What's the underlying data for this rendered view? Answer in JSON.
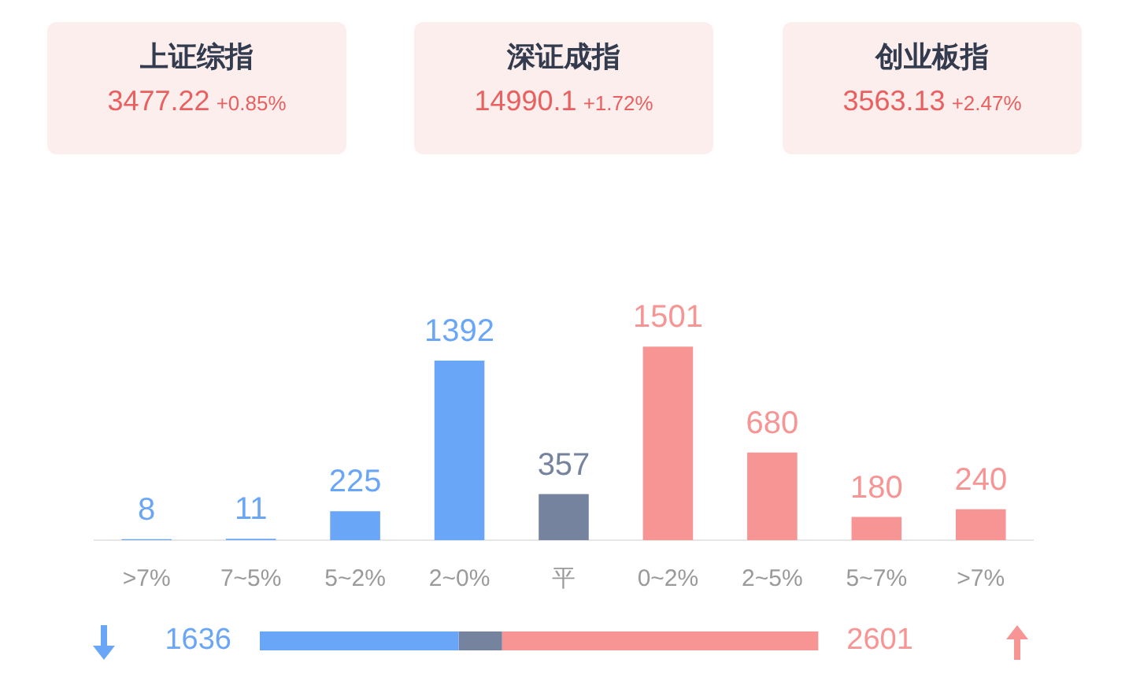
{
  "chart_data": [
    {
      "type": "other",
      "title": "上证综指",
      "annotations": [
        "3477.22",
        "+0.85%"
      ],
      "color": "#e8605f"
    },
    {
      "type": "other",
      "title": "深证成指",
      "annotations": [
        "14990.1",
        "+1.72%"
      ],
      "color": "#e8605f"
    },
    {
      "type": "other",
      "title": "创业板指",
      "annotations": [
        "3563.13",
        "+2.47%"
      ],
      "color": "#e8605f"
    },
    {
      "type": "bar",
      "categories": [
        ">7%",
        "7~5%",
        "5~2%",
        "2~0%",
        "平",
        "0~2%",
        "2~5%",
        "5~7%",
        ">7%"
      ],
      "values": [
        8,
        11,
        225,
        1392,
        357,
        1501,
        680,
        180,
        240
      ],
      "colors": [
        "#6aa6f8",
        "#6aa6f8",
        "#6aa6f8",
        "#6aa6f8",
        "#76839f",
        "#f79594",
        "#f79594",
        "#f79594",
        "#f79594"
      ],
      "data_labels": true
    },
    {
      "type": "bar",
      "orientation": "horizontal",
      "stacked": true,
      "categories": [
        null
      ],
      "series": [
        {
          "color": "#6aa6f8",
          "values": [
            1636
          ],
          "value_labels": [
            "1636"
          ]
        },
        {
          "color": "#76839f",
          "values": [
            357
          ],
          "value_labels": [
            null
          ]
        },
        {
          "color": "#f79594",
          "values": [
            2601
          ],
          "value_labels": [
            "2601"
          ]
        }
      ]
    }
  ]
}
